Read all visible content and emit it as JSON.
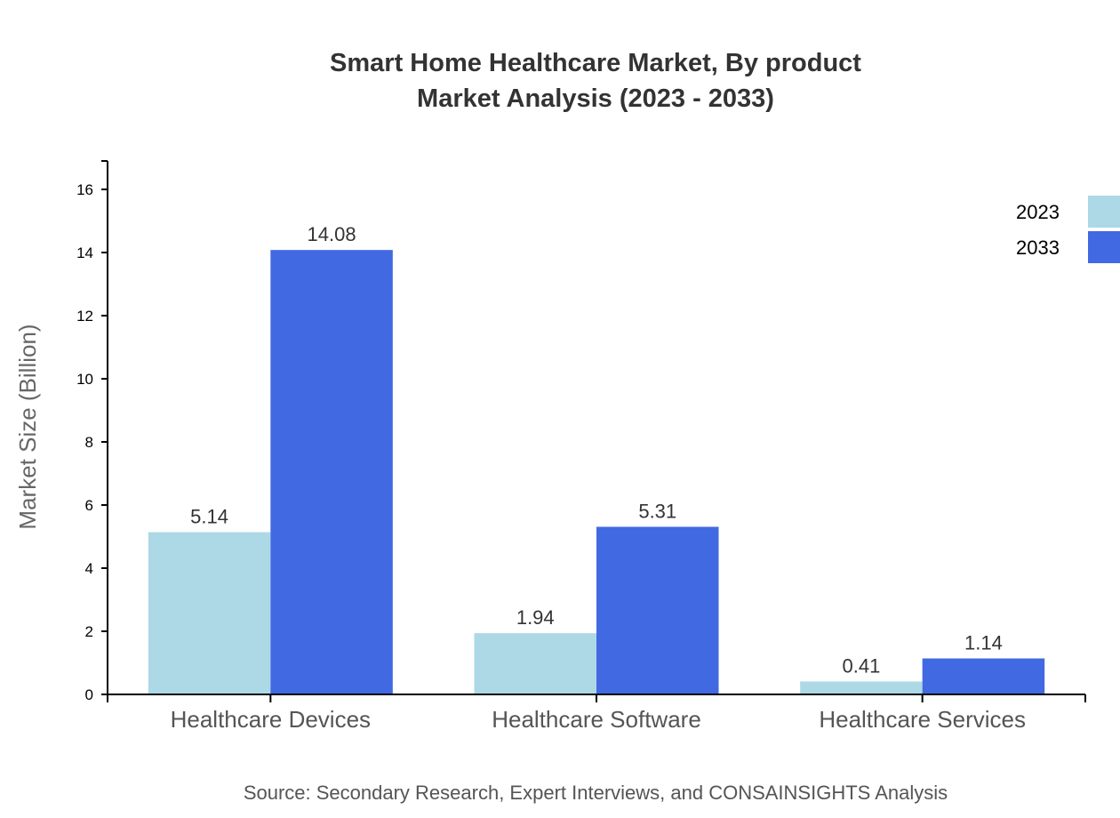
{
  "chart_data": {
    "type": "bar",
    "title": "Smart Home Healthcare Market, By product",
    "subtitle": "Market Analysis (2023 - 2033)",
    "xlabel": "",
    "ylabel": "Market Size (Billion)",
    "ylim": [
      0,
      16.9
    ],
    "yticks": [
      0,
      2,
      4,
      6,
      8,
      10,
      12,
      14,
      16
    ],
    "categories": [
      "Healthcare Devices",
      "Healthcare Software",
      "Healthcare Services"
    ],
    "series": [
      {
        "name": "2023",
        "color": "#ADD8E6",
        "values": [
          5.14,
          1.94,
          0.41
        ]
      },
      {
        "name": "2033",
        "color": "#4169E1",
        "values": [
          14.08,
          5.31,
          1.14
        ]
      }
    ],
    "legend_placement": "top-right",
    "grid": false,
    "source": "Source: Secondary Research, Expert Interviews, and CONSAINSIGHTS Analysis"
  }
}
